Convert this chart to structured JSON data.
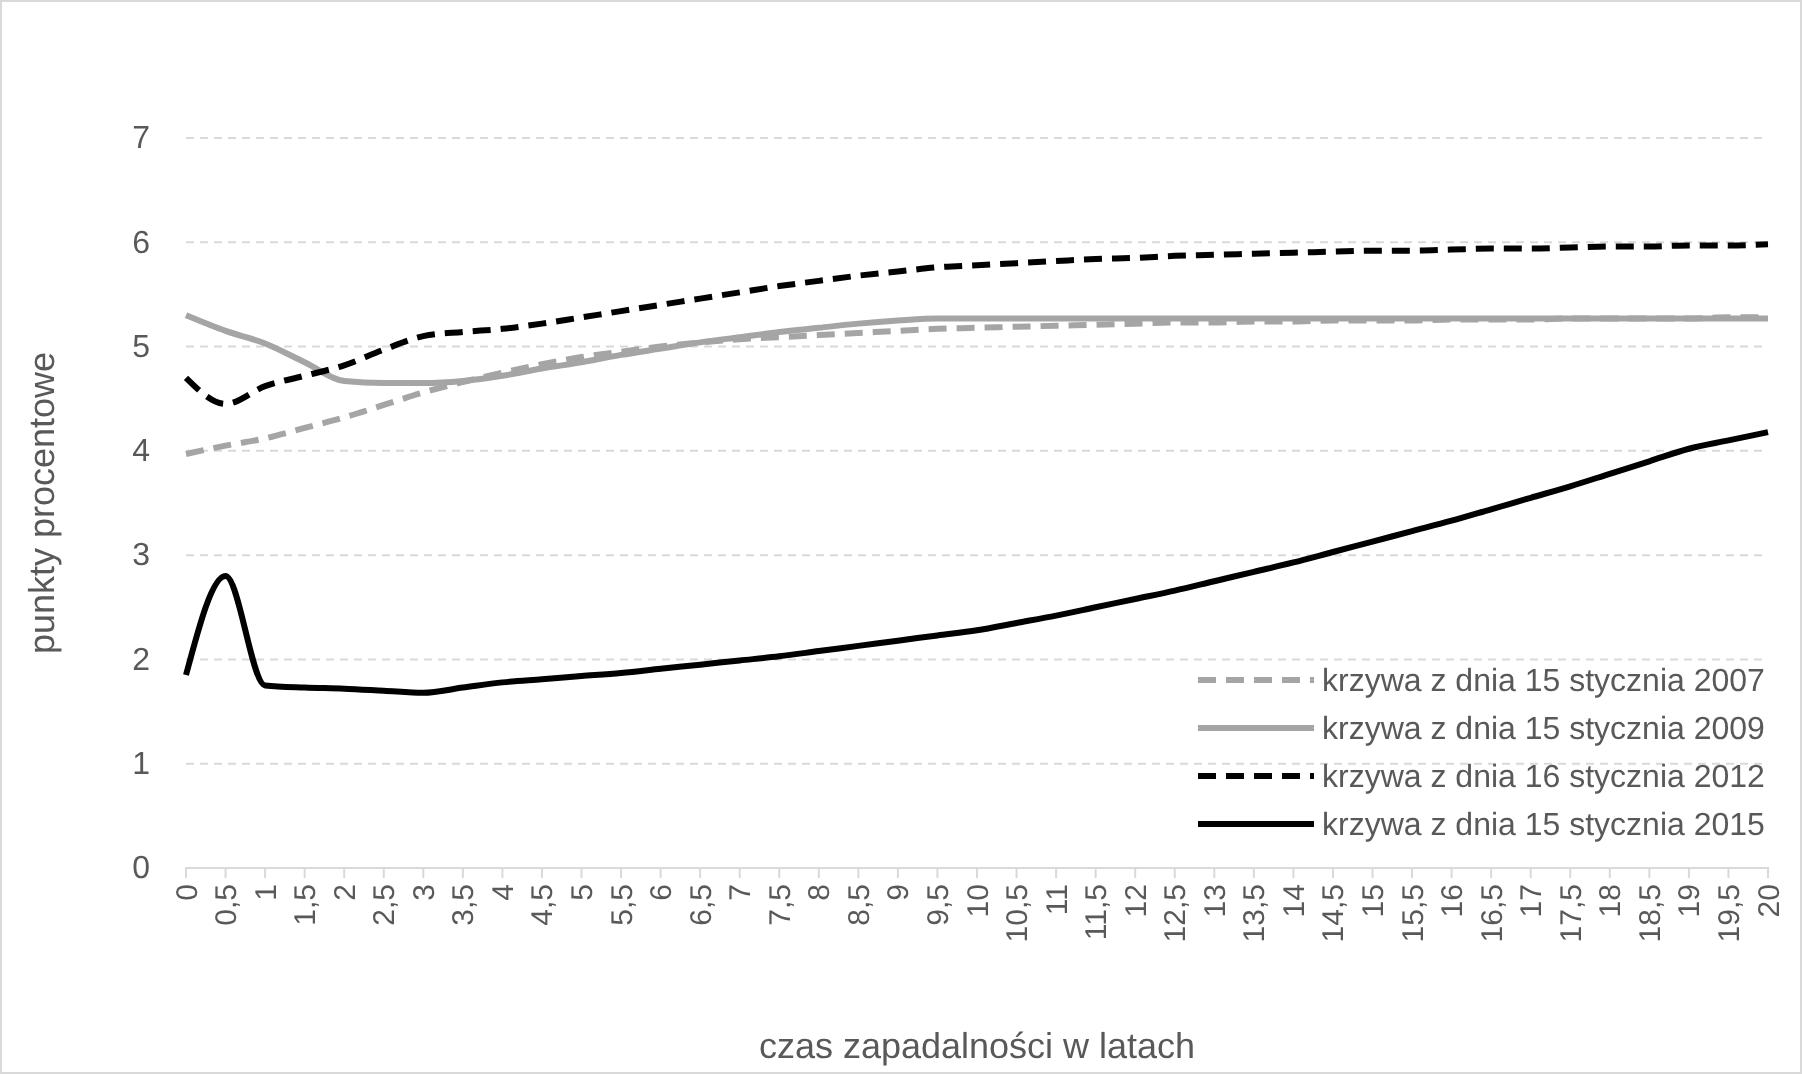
{
  "chart_data": {
    "type": "line",
    "xlabel": "czas zapadalności w latach",
    "ylabel": "punkty procentowe",
    "categories": [
      "0",
      "0,5",
      "1",
      "1,5",
      "2",
      "2,5",
      "3",
      "3,5",
      "4",
      "4,5",
      "5",
      "5,5",
      "6",
      "6,5",
      "7",
      "7,5",
      "8",
      "8,5",
      "9",
      "9,5",
      "10",
      "10,5",
      "11",
      "11,5",
      "12",
      "12,5",
      "13",
      "13,5",
      "14",
      "14,5",
      "15",
      "15,5",
      "16",
      "16,5",
      "17",
      "17,5",
      "18",
      "18,5",
      "19",
      "19,5",
      "20"
    ],
    "ylim": [
      0,
      7
    ],
    "yticks": [
      0,
      1,
      2,
      3,
      4,
      5,
      6,
      7
    ],
    "grid": "y",
    "legend": "bottom right",
    "marker": "none",
    "series": [
      {
        "name": "krzywa z dnia 15 stycznia 2007",
        "color": "#a5a5a5",
        "line_style": "dashed",
        "values": [
          3.97,
          4.05,
          4.12,
          4.22,
          4.32,
          4.44,
          4.56,
          4.66,
          4.75,
          4.83,
          4.9,
          4.95,
          5.0,
          5.04,
          5.07,
          5.09,
          5.11,
          5.13,
          5.15,
          5.17,
          5.18,
          5.19,
          5.2,
          5.21,
          5.22,
          5.23,
          5.23,
          5.24,
          5.24,
          5.25,
          5.25,
          5.25,
          5.26,
          5.26,
          5.26,
          5.27,
          5.27,
          5.27,
          5.27,
          5.28,
          5.28
        ]
      },
      {
        "name": "krzywa z dnia 15 stycznia 2009",
        "color": "#a5a5a5",
        "line_style": "solid",
        "values": [
          5.3,
          5.15,
          5.03,
          4.85,
          4.67,
          4.65,
          4.65,
          4.67,
          4.72,
          4.79,
          4.85,
          4.92,
          4.98,
          5.04,
          5.09,
          5.14,
          5.18,
          5.22,
          5.25,
          5.27,
          5.27,
          5.27,
          5.27,
          5.27,
          5.27,
          5.27,
          5.27,
          5.27,
          5.27,
          5.27,
          5.27,
          5.27,
          5.27,
          5.27,
          5.27,
          5.27,
          5.27,
          5.27,
          5.27,
          5.27,
          5.27
        ]
      },
      {
        "name": "krzywa z dnia 16 stycznia 2012",
        "color": "#000000",
        "line_style": "dashed",
        "values": [
          4.7,
          4.45,
          4.62,
          4.72,
          4.82,
          4.97,
          5.1,
          5.14,
          5.17,
          5.22,
          5.28,
          5.34,
          5.4,
          5.46,
          5.52,
          5.58,
          5.63,
          5.68,
          5.72,
          5.76,
          5.78,
          5.8,
          5.82,
          5.84,
          5.85,
          5.87,
          5.88,
          5.89,
          5.9,
          5.91,
          5.92,
          5.92,
          5.93,
          5.94,
          5.94,
          5.95,
          5.96,
          5.96,
          5.97,
          5.97,
          5.98
        ]
      },
      {
        "name": "krzywa z dnia 15 stycznia 2015",
        "color": "#000000",
        "line_style": "solid",
        "values": [
          1.85,
          2.8,
          1.75,
          1.73,
          1.72,
          1.7,
          1.68,
          1.73,
          1.78,
          1.81,
          1.84,
          1.87,
          1.91,
          1.95,
          1.99,
          2.03,
          2.08,
          2.13,
          2.18,
          2.23,
          2.28,
          2.35,
          2.42,
          2.5,
          2.58,
          2.66,
          2.75,
          2.84,
          2.93,
          3.03,
          3.13,
          3.23,
          3.33,
          3.44,
          3.55,
          3.66,
          3.78,
          3.9,
          4.02,
          4.1,
          4.18
        ]
      }
    ]
  }
}
